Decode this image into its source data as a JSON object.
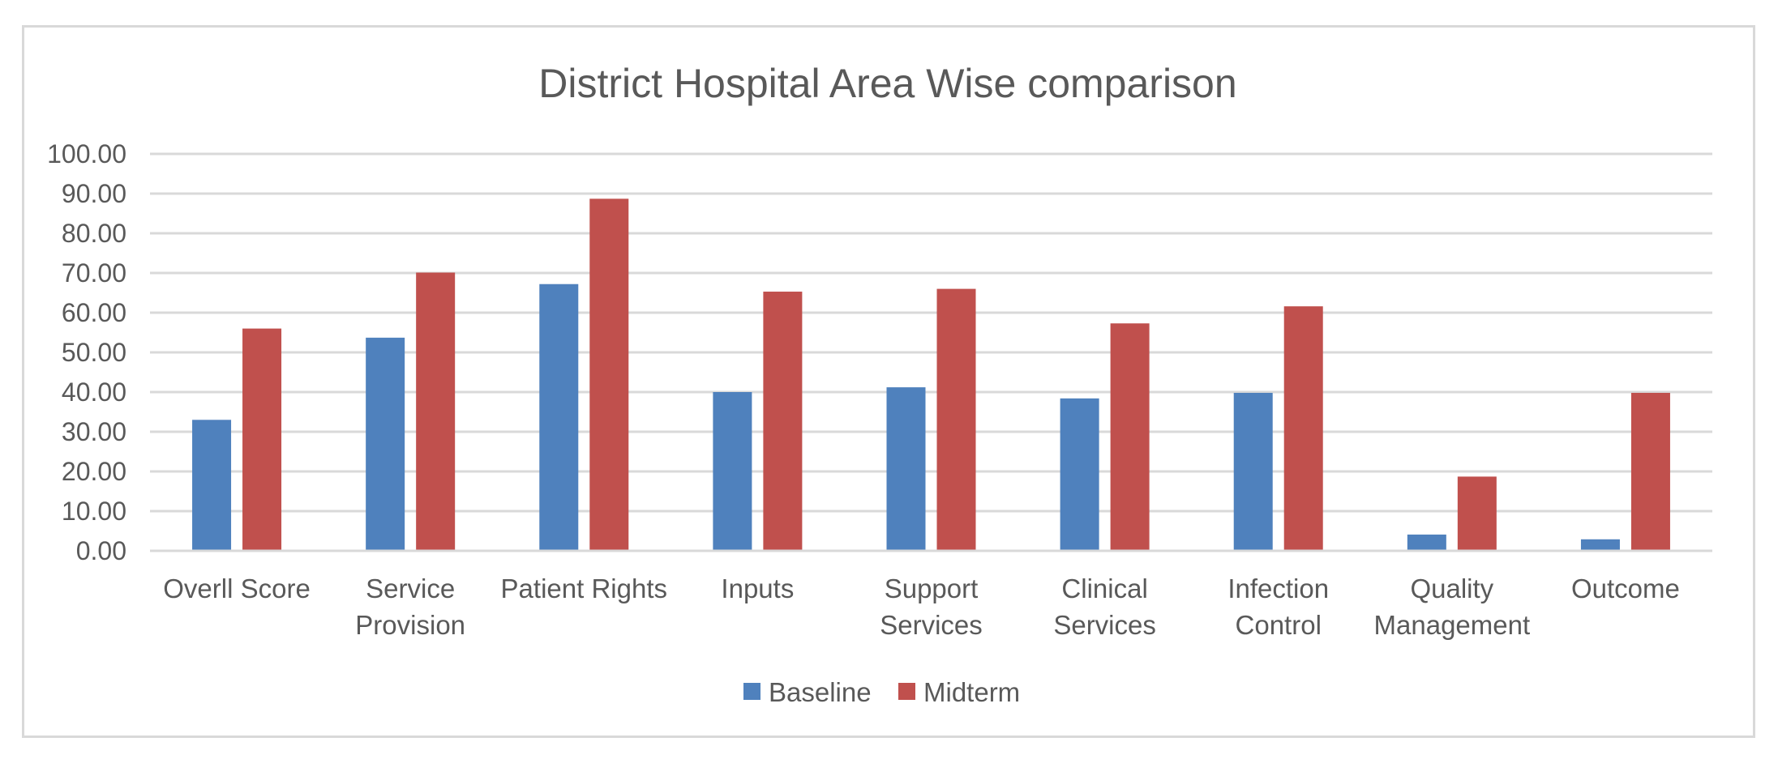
{
  "chart_data": {
    "type": "bar",
    "title": "District Hospital Area Wise comparison",
    "categories": [
      [
        "Overll Score"
      ],
      [
        "Service",
        "Provision"
      ],
      [
        "Patient Rights"
      ],
      [
        "Inputs"
      ],
      [
        "Support",
        "Services"
      ],
      [
        "Clinical",
        "Services"
      ],
      [
        "Infection",
        "Control"
      ],
      [
        "Quality",
        "Management"
      ],
      [
        "Outcome"
      ]
    ],
    "series": [
      {
        "name": "Baseline",
        "color": "#4F81BD",
        "values": [
          33.0,
          53.7,
          67.2,
          40.0,
          41.2,
          38.4,
          39.8,
          4.1,
          2.9
        ]
      },
      {
        "name": "Midterm",
        "color": "#C0504D",
        "values": [
          56.0,
          70.1,
          88.7,
          65.3,
          66.0,
          57.3,
          61.6,
          18.7,
          39.8
        ]
      }
    ],
    "ylim": [
      0,
      100
    ],
    "yticks": [
      "0.00",
      "10.00",
      "20.00",
      "30.00",
      "40.00",
      "50.00",
      "60.00",
      "70.00",
      "80.00",
      "90.00",
      "100.00"
    ],
    "grid": true,
    "legend_position": "bottom"
  }
}
